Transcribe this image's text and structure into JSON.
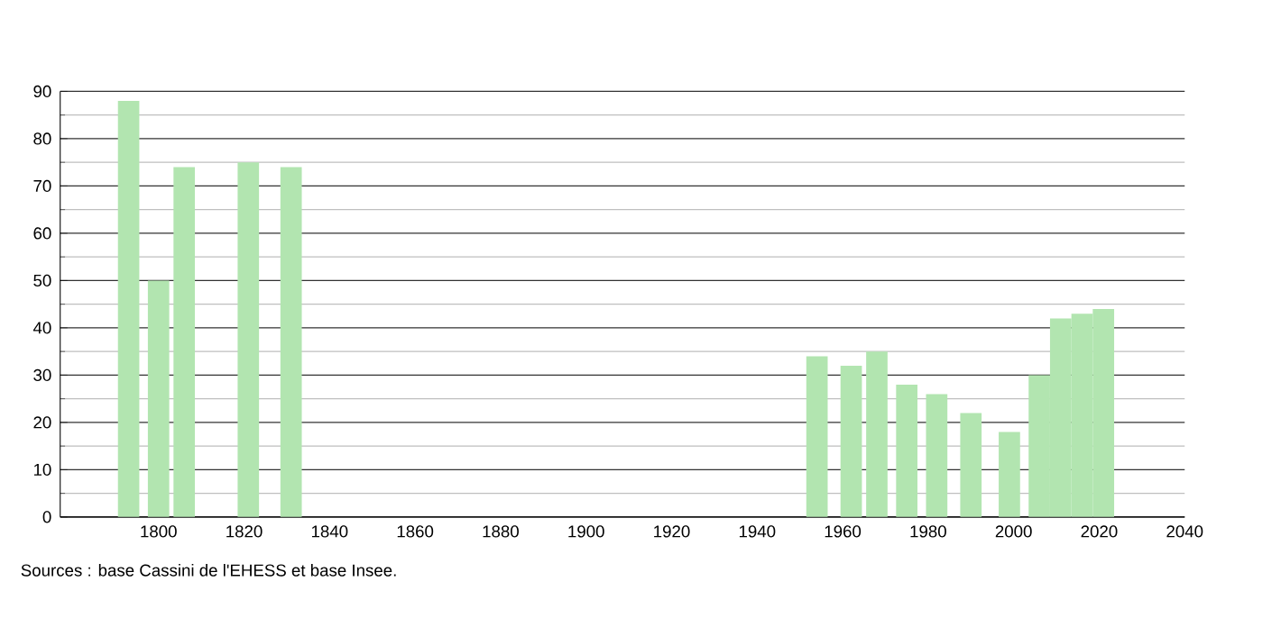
{
  "chart_data": {
    "type": "bar",
    "x": [
      1793,
      1800,
      1806,
      1821,
      1831,
      1954,
      1962,
      1968,
      1975,
      1982,
      1990,
      1999,
      2006,
      2011,
      2016,
      2021
    ],
    "values": [
      88,
      50,
      74,
      75,
      74,
      34,
      32,
      35,
      28,
      26,
      22,
      18,
      30,
      42,
      43,
      44
    ],
    "color": "#b2e5b0",
    "xlim": [
      1777,
      2040
    ],
    "xticks": [
      1800,
      1820,
      1840,
      1860,
      1880,
      1900,
      1920,
      1940,
      1960,
      1980,
      2000,
      2020,
      2040
    ],
    "ylim": [
      0,
      90
    ],
    "yticks": [
      0,
      10,
      20,
      30,
      40,
      50,
      60,
      70,
      80,
      90
    ],
    "grid": "y",
    "annotations": [
      "Sources : base Cassini de l'EHESS et base Insee."
    ]
  }
}
